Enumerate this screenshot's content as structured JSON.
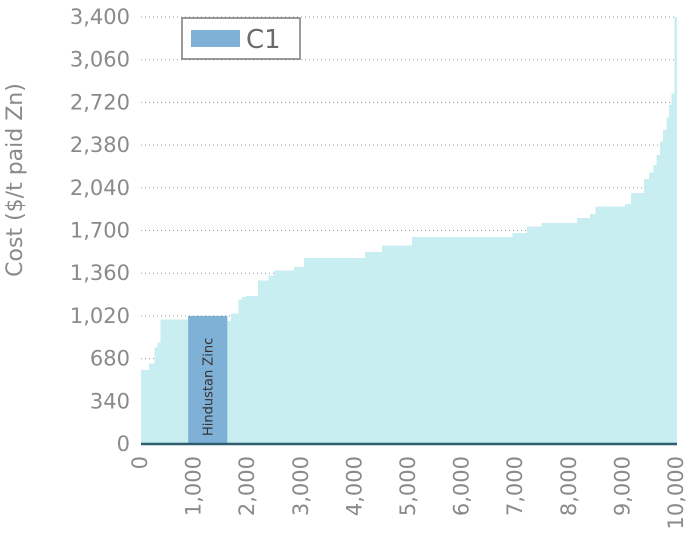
{
  "chart_data": {
    "type": "area",
    "title": "",
    "xlabel": "",
    "ylabel": "Cost ($/t paid Zn)",
    "xlim": [
      0,
      10000
    ],
    "ylim": [
      0,
      3400
    ],
    "xticks": [
      0,
      1000,
      2000,
      3000,
      4000,
      5000,
      6000,
      7000,
      8000,
      9000,
      10000
    ],
    "xtick_labels": [
      "0",
      "1,000",
      "2,000",
      "3,000",
      "4,000",
      "5,000",
      "6,000",
      "7,000",
      "8,000",
      "9,000",
      "10,000"
    ],
    "yticks": [
      0,
      340,
      680,
      1020,
      1360,
      1700,
      2040,
      2380,
      2720,
      3060,
      3400
    ],
    "ytick_labels": [
      "0",
      "340",
      "680",
      "1,020",
      "1,360",
      "1,700",
      "2,040",
      "2,380",
      "2,720",
      "3,060",
      "3,400"
    ],
    "grid": "horizontal",
    "legend": {
      "position": "top-left",
      "entries": [
        "C1"
      ]
    },
    "series": [
      {
        "name": "C1",
        "color": "#c8eef2",
        "steps": [
          {
            "x0": 0,
            "x1": 150,
            "y": 590
          },
          {
            "x0": 150,
            "x1": 250,
            "y": 640
          },
          {
            "x0": 250,
            "x1": 310,
            "y": 770
          },
          {
            "x0": 310,
            "x1": 360,
            "y": 810
          },
          {
            "x0": 360,
            "x1": 880,
            "y": 990
          },
          {
            "x0": 880,
            "x1": 1610,
            "y": 1020
          },
          {
            "x0": 1610,
            "x1": 1680,
            "y": 980
          },
          {
            "x0": 1680,
            "x1": 1820,
            "y": 1040
          },
          {
            "x0": 1820,
            "x1": 1880,
            "y": 1150
          },
          {
            "x0": 1880,
            "x1": 1960,
            "y": 1170
          },
          {
            "x0": 1960,
            "x1": 2180,
            "y": 1180
          },
          {
            "x0": 2180,
            "x1": 2380,
            "y": 1300
          },
          {
            "x0": 2380,
            "x1": 2480,
            "y": 1340
          },
          {
            "x0": 2480,
            "x1": 2850,
            "y": 1380
          },
          {
            "x0": 2850,
            "x1": 3040,
            "y": 1410
          },
          {
            "x0": 3040,
            "x1": 4180,
            "y": 1480
          },
          {
            "x0": 4180,
            "x1": 4500,
            "y": 1530
          },
          {
            "x0": 4500,
            "x1": 5060,
            "y": 1580
          },
          {
            "x0": 5060,
            "x1": 6930,
            "y": 1650
          },
          {
            "x0": 6930,
            "x1": 7200,
            "y": 1680
          },
          {
            "x0": 7200,
            "x1": 7470,
            "y": 1730
          },
          {
            "x0": 7470,
            "x1": 8130,
            "y": 1760
          },
          {
            "x0": 8130,
            "x1": 8380,
            "y": 1800
          },
          {
            "x0": 8380,
            "x1": 8480,
            "y": 1830
          },
          {
            "x0": 8480,
            "x1": 9030,
            "y": 1890
          },
          {
            "x0": 9030,
            "x1": 9140,
            "y": 1910
          },
          {
            "x0": 9140,
            "x1": 9380,
            "y": 2000
          },
          {
            "x0": 9380,
            "x1": 9480,
            "y": 2110
          },
          {
            "x0": 9480,
            "x1": 9560,
            "y": 2160
          },
          {
            "x0": 9560,
            "x1": 9620,
            "y": 2220
          },
          {
            "x0": 9620,
            "x1": 9680,
            "y": 2300
          },
          {
            "x0": 9680,
            "x1": 9740,
            "y": 2410
          },
          {
            "x0": 9740,
            "x1": 9800,
            "y": 2500
          },
          {
            "x0": 9800,
            "x1": 9850,
            "y": 2600
          },
          {
            "x0": 9850,
            "x1": 9900,
            "y": 2700
          },
          {
            "x0": 9900,
            "x1": 9950,
            "y": 2790
          },
          {
            "x0": 9950,
            "x1": 10000,
            "y": 3400
          }
        ]
      }
    ],
    "highlight": {
      "label": "Hindustan Zinc",
      "x0": 880,
      "x1": 1610,
      "y": 1020,
      "color": "#7fb0d6"
    }
  }
}
